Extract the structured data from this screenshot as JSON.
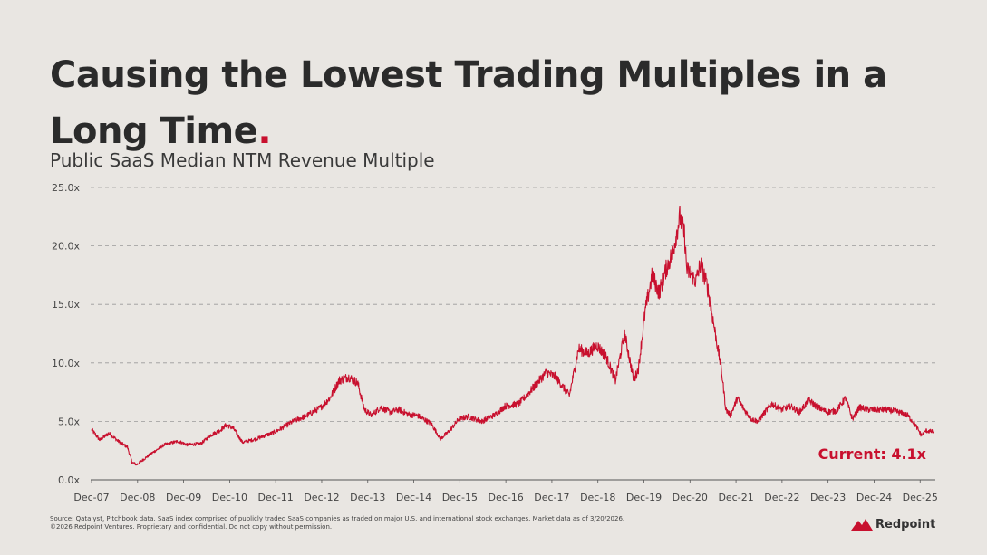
{
  "header": {
    "title": "Causing the Lowest Trading Multiples in a Long Time",
    "title_dot": ".",
    "subtitle": "Public SaaS Median NTM Revenue Multiple"
  },
  "colors": {
    "line": "#c8102e",
    "text": "#2b2b2b",
    "grid": "#9a9a9a",
    "background": "#e9e6e2"
  },
  "chart_data": {
    "type": "line",
    "title": "Public SaaS Median NTM Revenue Multiple",
    "xlabel": "",
    "ylabel": "",
    "ylim": [
      0,
      25
    ],
    "xlim": [
      2007.9,
      2026.25
    ],
    "y_ticks": [
      0,
      5,
      10,
      15,
      20,
      25
    ],
    "y_tick_labels": [
      "0.0x",
      "5.0x",
      "10.0x",
      "15.0x",
      "20.0x",
      "25.0x"
    ],
    "x_ticks": [
      2007.92,
      2008.92,
      2009.92,
      2010.92,
      2011.92,
      2012.92,
      2013.92,
      2014.92,
      2015.92,
      2016.92,
      2017.92,
      2018.92,
      2019.92,
      2020.92,
      2021.92,
      2022.92,
      2023.92,
      2024.92,
      2025.92
    ],
    "x_tick_labels": [
      "Dec-07",
      "Dec-08",
      "Dec-09",
      "Dec-10",
      "Dec-11",
      "Dec-12",
      "Dec-13",
      "Dec-14",
      "Dec-15",
      "Dec-16",
      "Dec-17",
      "Dec-18",
      "Dec-19",
      "Dec-20",
      "Dec-21",
      "Dec-22",
      "Dec-23",
      "Dec-24",
      "Dec-25"
    ],
    "grid": "horizontal dashed",
    "series": [
      {
        "name": "Public SaaS Median NTM Revenue Multiple",
        "x": [
          2007.92,
          2008.1,
          2008.3,
          2008.5,
          2008.7,
          2008.8,
          2008.9,
          2009.0,
          2009.2,
          2009.5,
          2009.8,
          2010.0,
          2010.3,
          2010.5,
          2010.7,
          2010.85,
          2011.0,
          2011.2,
          2011.5,
          2011.7,
          2011.85,
          2012.0,
          2012.3,
          2012.6,
          2012.9,
          2013.1,
          2013.3,
          2013.5,
          2013.7,
          2013.85,
          2014.0,
          2014.2,
          2014.4,
          2014.6,
          2014.8,
          2015.0,
          2015.3,
          2015.5,
          2015.7,
          2015.9,
          2016.1,
          2016.4,
          2016.7,
          2016.9,
          2017.2,
          2017.5,
          2017.8,
          2018.0,
          2018.3,
          2018.5,
          2018.7,
          2018.9,
          2019.1,
          2019.3,
          2019.5,
          2019.7,
          2019.8,
          2019.95,
          2020.1,
          2020.25,
          2020.4,
          2020.55,
          2020.7,
          2020.8,
          2020.85,
          2020.95,
          2021.05,
          2021.15,
          2021.3,
          2021.45,
          2021.6,
          2021.7,
          2021.8,
          2021.95,
          2022.1,
          2022.25,
          2022.4,
          2022.55,
          2022.7,
          2022.9,
          2023.1,
          2023.3,
          2023.5,
          2023.7,
          2023.9,
          2024.1,
          2024.3,
          2024.45,
          2024.6,
          2024.8,
          2024.95,
          2025.2,
          2025.45,
          2025.65,
          2025.8,
          2025.95,
          2026.05,
          2026.21
        ],
        "values": [
          4.3,
          3.4,
          4.0,
          3.3,
          2.8,
          1.5,
          1.3,
          1.6,
          2.2,
          3.0,
          3.3,
          3.0,
          3.1,
          3.8,
          4.2,
          4.7,
          4.4,
          3.2,
          3.5,
          3.8,
          4.0,
          4.3,
          5.0,
          5.5,
          6.2,
          7.0,
          8.5,
          8.8,
          8.3,
          6.0,
          5.5,
          6.2,
          5.8,
          6.0,
          5.6,
          5.5,
          4.8,
          3.5,
          4.2,
          5.2,
          5.4,
          5.0,
          5.6,
          6.3,
          6.5,
          7.8,
          9.2,
          8.8,
          7.2,
          11.2,
          10.8,
          11.5,
          10.5,
          8.5,
          12.5,
          8.5,
          9.5,
          14.5,
          17.5,
          16.0,
          18.0,
          19.5,
          22.5,
          21.0,
          18.0,
          17.5,
          17.0,
          18.5,
          16.5,
          13.0,
          9.5,
          6.0,
          5.5,
          7.0,
          6.0,
          5.2,
          5.0,
          5.8,
          6.5,
          6.0,
          6.3,
          5.8,
          6.8,
          6.2,
          5.8,
          5.9,
          7.0,
          5.2,
          6.2,
          6.0,
          6.0,
          6.0,
          5.8,
          5.5,
          4.8,
          3.8,
          4.2,
          4.1
        ]
      }
    ],
    "annotation": "Current: 4.1x"
  },
  "footer": {
    "source": "Source: Qatalyst, Pitchbook data. SaaS index comprised of publicly traded SaaS companies as traded on major U.S. and international stock exchanges. Market data as of 3/20/2026.",
    "copyright": "©2026 Redpoint Ventures. Proprietary and confidential. Do not copy without permission.",
    "logo_text": "Redpoint"
  }
}
